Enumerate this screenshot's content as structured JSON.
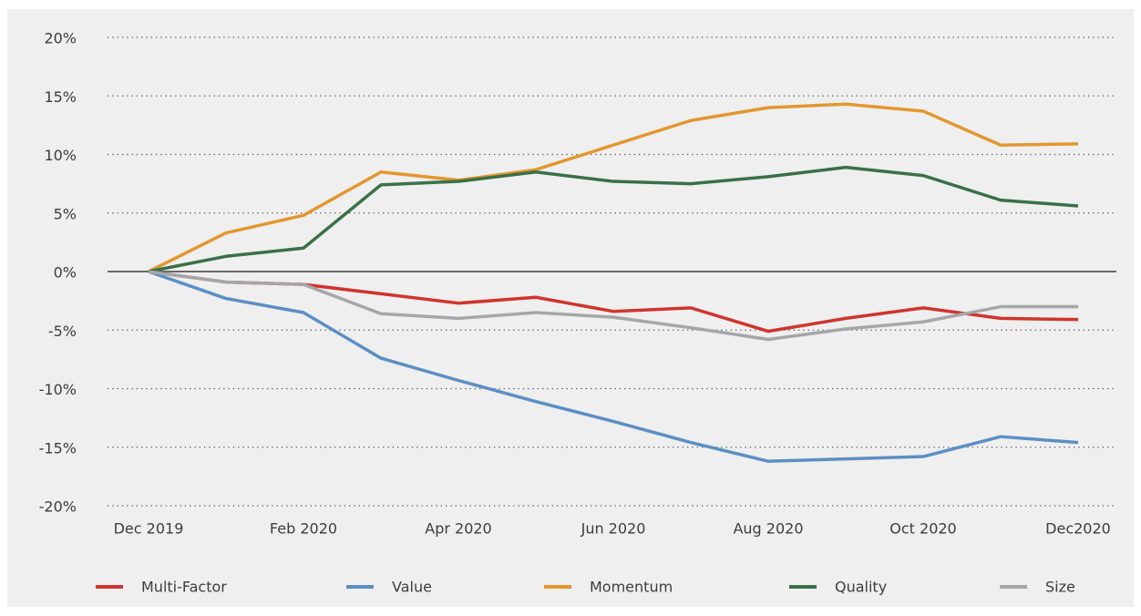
{
  "chart_data": {
    "type": "line",
    "categories": [
      "Dec 2019",
      null,
      "Feb 2020",
      null,
      "Apr 2020",
      null,
      "Jun 2020",
      null,
      "Aug 2020",
      null,
      "Oct 2020",
      null,
      "Dec2020"
    ],
    "series": [
      {
        "name": "Multi-Factor",
        "color": "#d0342c",
        "values": [
          0,
          -0.9,
          -1.1,
          -1.9,
          -2.7,
          -2.2,
          -3.4,
          -3.1,
          -5.1,
          -4.0,
          -3.1,
          -4.0,
          -4.1
        ]
      },
      {
        "name": "Value",
        "color": "#5b8fc4",
        "values": [
          0,
          -2.3,
          -3.5,
          -7.4,
          -9.3,
          -11.1,
          -12.8,
          -14.6,
          -16.2,
          -16.0,
          -15.8,
          -14.1,
          -14.6
        ]
      },
      {
        "name": "Momentum",
        "color": "#e3972f",
        "values": [
          0,
          3.3,
          4.8,
          8.5,
          7.8,
          8.7,
          10.8,
          12.9,
          14.0,
          14.3,
          13.7,
          10.8,
          10.9
        ]
      },
      {
        "name": "Quality",
        "color": "#3a7048",
        "values": [
          0,
          1.3,
          2.0,
          7.4,
          7.7,
          8.5,
          7.7,
          7.5,
          8.1,
          8.9,
          8.2,
          6.1,
          5.6
        ]
      },
      {
        "name": "Size",
        "color": "#a5a6a8",
        "values": [
          0,
          -0.9,
          -1.1,
          -3.6,
          -4.0,
          -3.5,
          -3.9,
          -4.8,
          -5.8,
          -4.9,
          -4.3,
          -3.0,
          -3.0
        ]
      }
    ],
    "ylim": [
      -20,
      20
    ],
    "yticks": [
      {
        "value": -20,
        "label": "-20%"
      },
      {
        "value": -15,
        "label": "-15%"
      },
      {
        "value": -10,
        "label": "-10%"
      },
      {
        "value": -5,
        "label": "-5%"
      },
      {
        "value": 0,
        "label": "0%"
      },
      {
        "value": 5,
        "label": "5%"
      },
      {
        "value": 10,
        "label": "10%"
      },
      {
        "value": 15,
        "label": "15%"
      },
      {
        "value": 20,
        "label": "20%"
      }
    ],
    "grid": true,
    "legend": "bottom"
  }
}
